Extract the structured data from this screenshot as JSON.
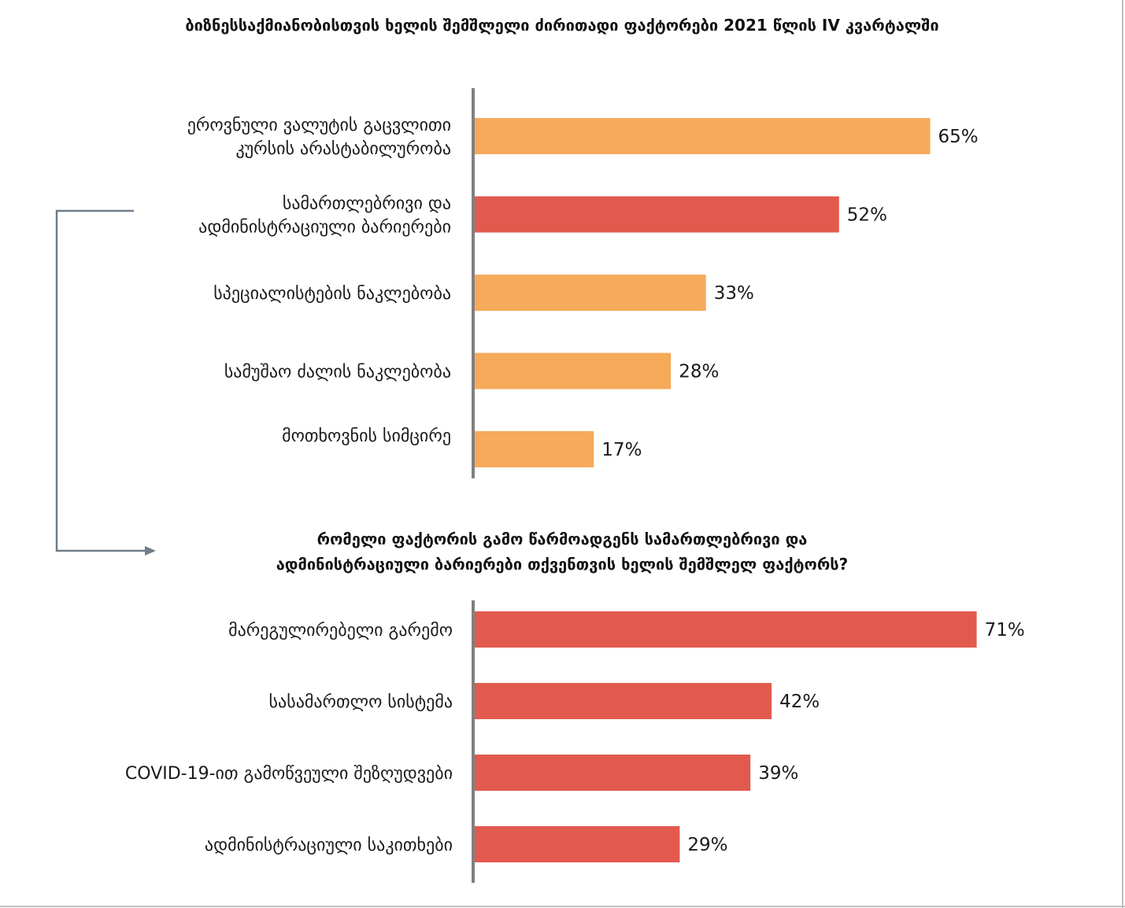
{
  "colors": {
    "orange": "#F6AA5A",
    "red": "#E25A4E",
    "axis": "#808080",
    "connector": "#6E7D89",
    "border": "#C0C0C0"
  },
  "chart_data": [
    {
      "type": "bar",
      "orientation": "horizontal",
      "title": "ბიზნესსაქმიანობისთვის ხელის შემშლელი ძირითადი ფაქტორები 2021 წლის IV კვარტალში",
      "categories": [
        [
          "ეროვნული ვალუტის გაცვლითი",
          "კურსის არასტაბილურობა"
        ],
        [
          "სამართლებრივი და",
          "ადმინისტრაციული ბარიერები"
        ],
        [
          "სპეციალისტების ნაკლებობა"
        ],
        [
          "სამუშაო ძალის ნაკლებობა"
        ],
        [
          "მოთხოვნის სიმცირე"
        ]
      ],
      "values": [
        65,
        52,
        33,
        28,
        17
      ],
      "value_labels": [
        "65%",
        "52%",
        "33%",
        "28%",
        "17%"
      ],
      "bar_colors": [
        "orange",
        "red",
        "orange",
        "orange",
        "orange"
      ],
      "unit": "%",
      "xlim": [
        0,
        100
      ]
    },
    {
      "type": "bar",
      "orientation": "horizontal",
      "title": [
        "რომელი ფაქტორის გამო წარმოადგენს სამართლებრივი და",
        "ადმინისტრაციული ბარიერები თქვენთვის ხელის შემშლელ ფაქტორს?"
      ],
      "categories": [
        [
          "მარეგულირებელი გარემო"
        ],
        [
          "სასამართლო სისტემა"
        ],
        [
          "COVID-19-ით გამოწვეული შეზღუდვები"
        ],
        [
          "ადმინისტრაციული საკითხები"
        ]
      ],
      "values": [
        71,
        42,
        39,
        29
      ],
      "value_labels": [
        "71%",
        "42%",
        "39%",
        "29%"
      ],
      "bar_colors": [
        "red",
        "red",
        "red",
        "red"
      ],
      "unit": "%",
      "xlim": [
        0,
        100
      ]
    }
  ]
}
